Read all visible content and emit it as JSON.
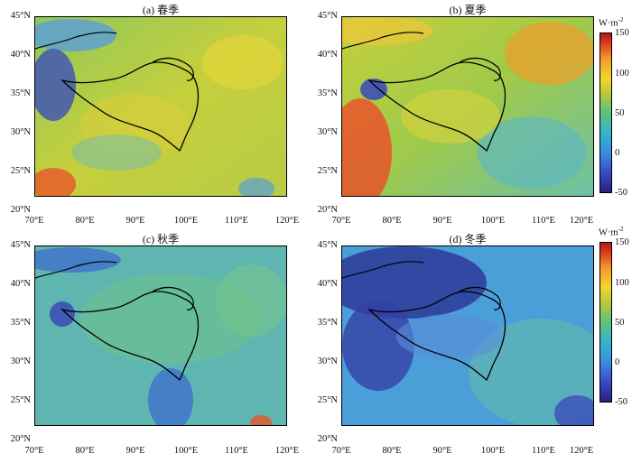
{
  "panels": [
    {
      "id": "a",
      "title": "(a) 春季"
    },
    {
      "id": "b",
      "title": "(b) 夏季"
    },
    {
      "id": "c",
      "title": "(c) 秋季"
    },
    {
      "id": "d",
      "title": "(d) 冬季"
    }
  ],
  "axes": {
    "lat_labels": [
      "45°N",
      "40°N",
      "35°N",
      "30°N",
      "25°N",
      "20°N"
    ],
    "lon_labels": [
      "70°E",
      "80°E",
      "90°E",
      "100°E",
      "110°E",
      "120°E"
    ]
  },
  "colorbar": {
    "unit": "W·m",
    "unit_exp": "-2",
    "labels": [
      "150",
      "100",
      "50",
      "0",
      "-50"
    ],
    "colors": {
      "low": "#2b1f7a",
      "mid": "#5ec27a",
      "high": "#b01818"
    }
  }
}
